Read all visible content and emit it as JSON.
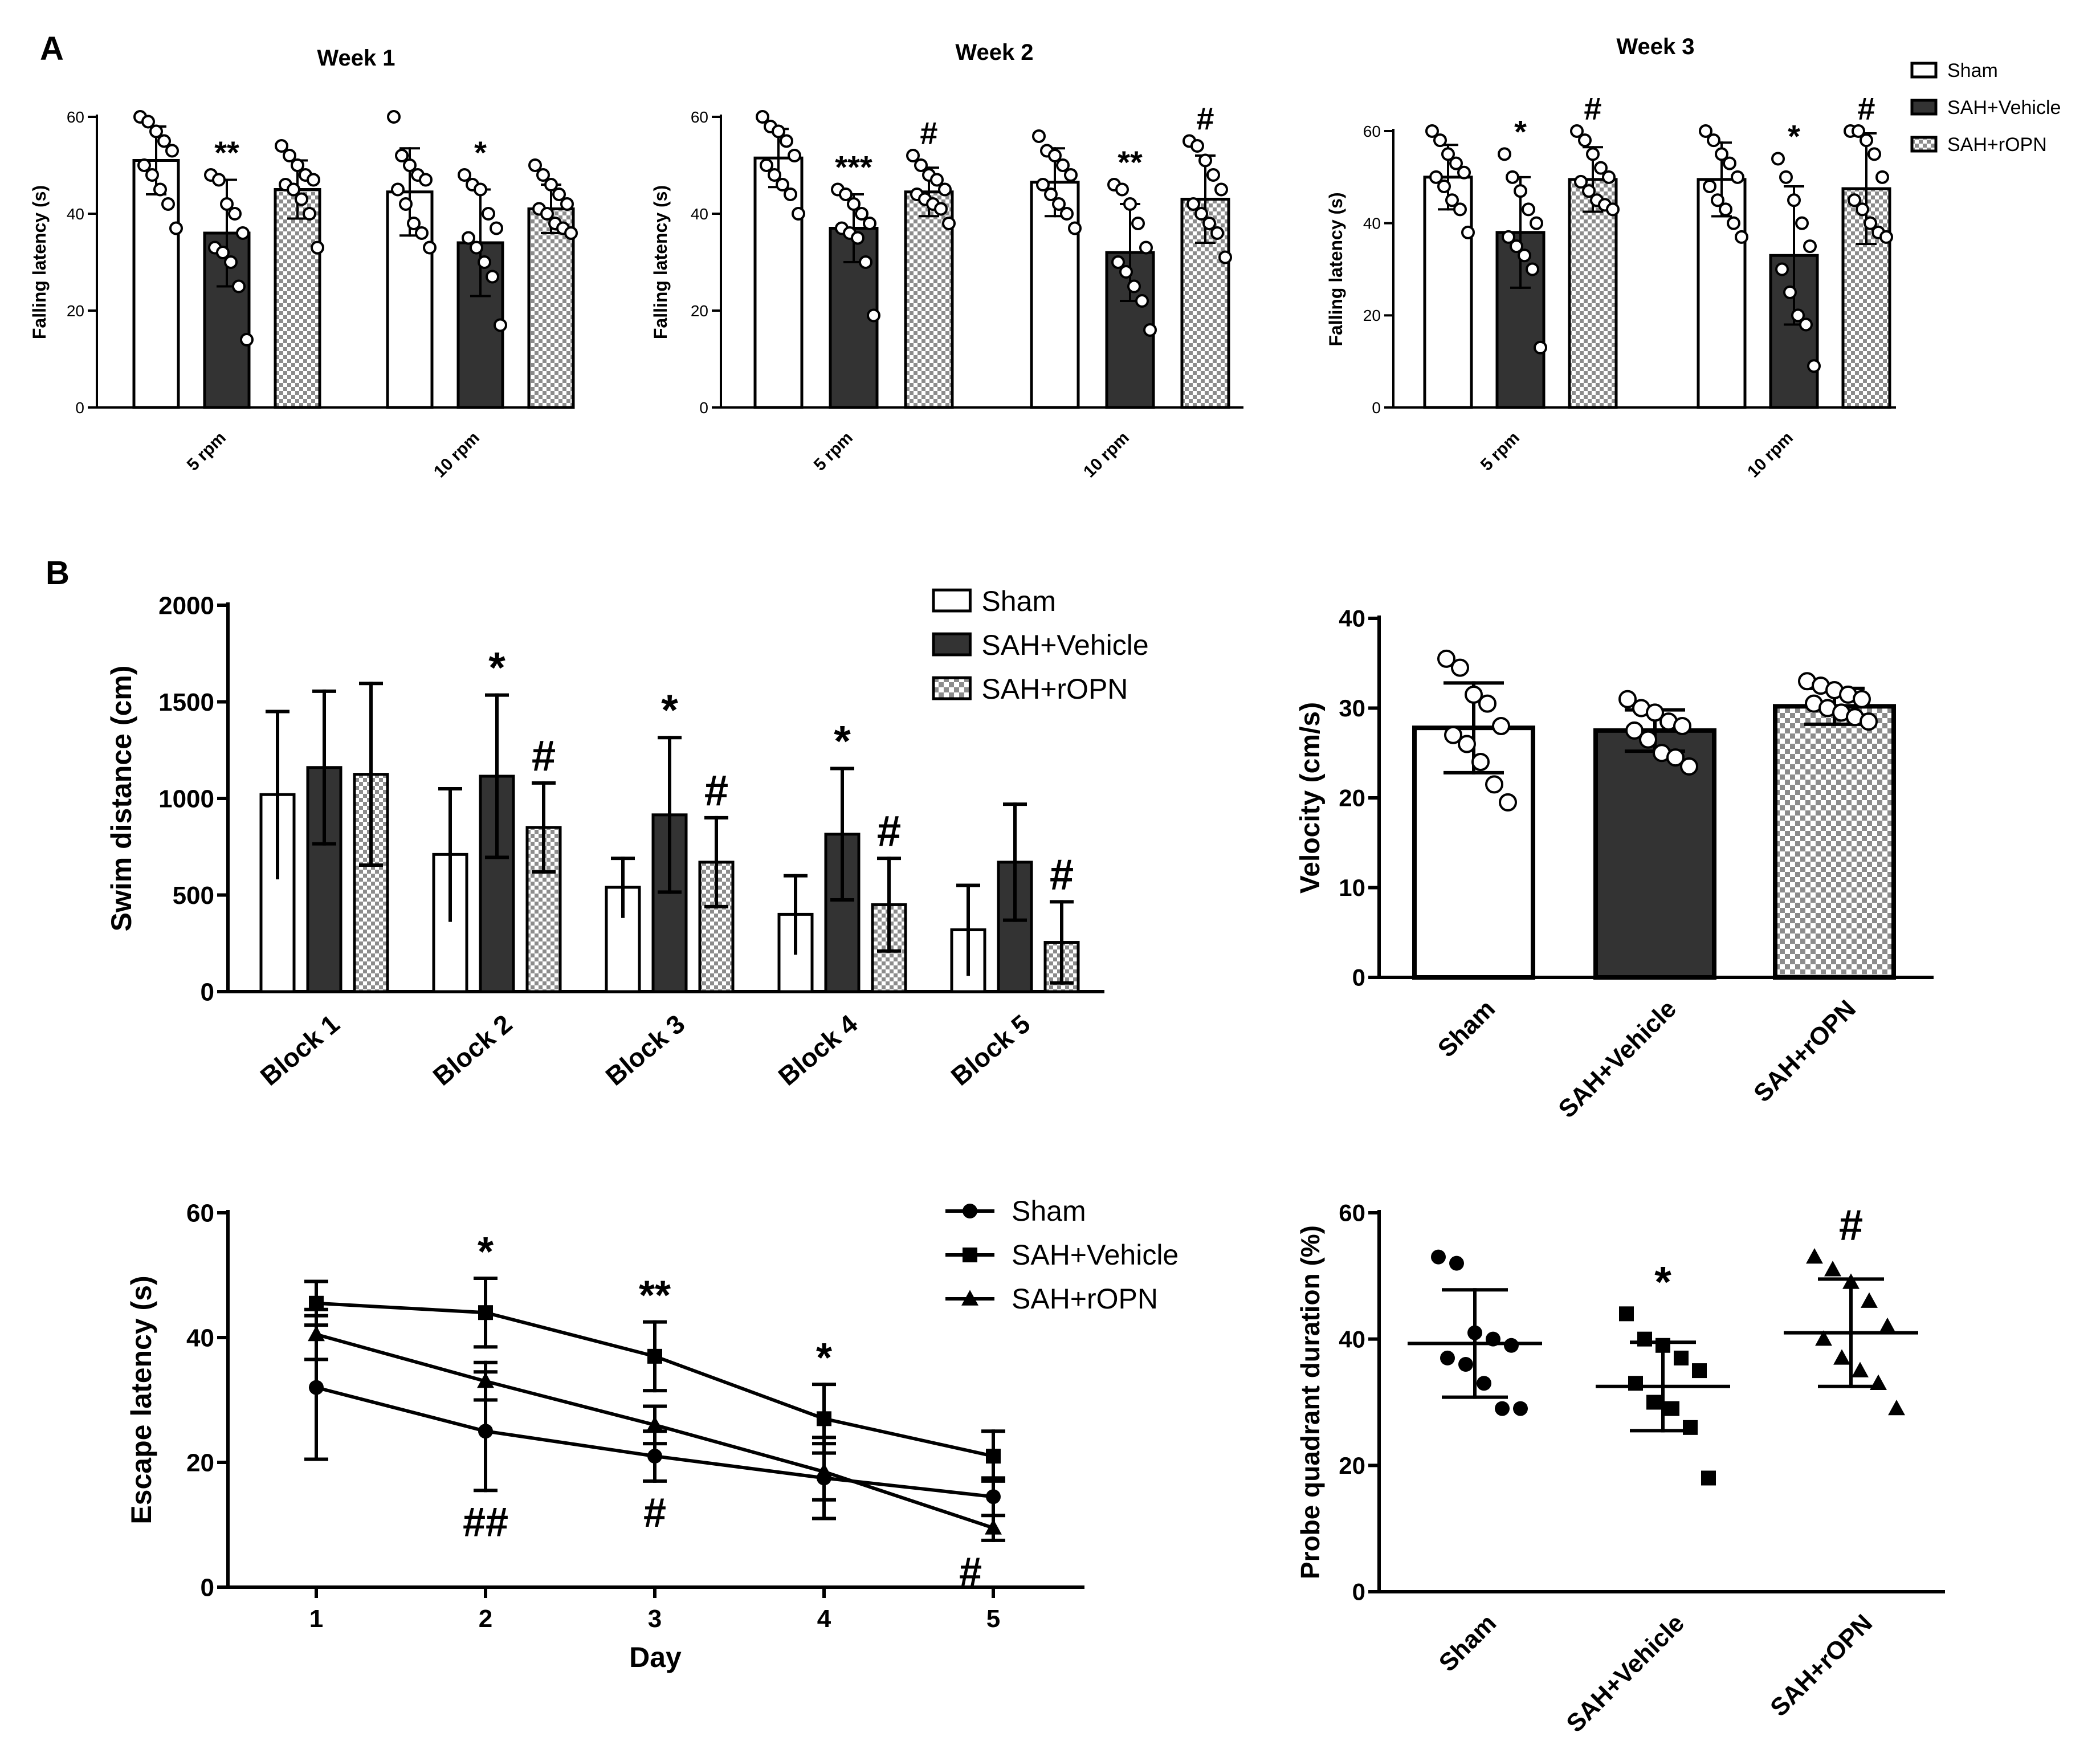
{
  "figure": {
    "panel_labels": [
      "A",
      "B"
    ]
  },
  "colors": {
    "axis": "#000000",
    "sham_fill": "#ffffff",
    "vehicle_fill": "#333333",
    "checker_light": "#ffffff",
    "checker_dark": "#8c8c8c"
  },
  "chart_data": [
    {
      "id": "rotarod_week1",
      "type": "bar",
      "title": "Week 1",
      "ylabel": "Falling latency (s)",
      "ylim": [
        0,
        60
      ],
      "yticks": [
        0,
        20,
        40,
        60
      ],
      "categories": [
        "5 rpm",
        "10 rpm"
      ],
      "series": [
        {
          "name": "Sham",
          "values": [
            51,
            44.5
          ],
          "err": [
            7,
            9
          ],
          "points": [
            [
              60,
              59,
              57,
              55,
              53,
              50,
              48,
              45,
              42,
              37
            ],
            [
              60,
              52,
              50,
              48,
              47,
              45,
              42,
              38,
              36,
              33
            ]
          ]
        },
        {
          "name": "SAH+Vehicle",
          "values": [
            36,
            34
          ],
          "err": [
            11,
            11
          ],
          "points": [
            [
              48,
              47,
              42,
              40,
              36,
              33,
              32,
              30,
              25,
              14
            ],
            [
              48,
              46,
              45,
              40,
              37,
              35,
              33,
              30,
              27,
              17
            ]
          ]
        },
        {
          "name": "SAH+rOPN",
          "values": [
            45,
            41
          ],
          "err": [
            6,
            5
          ],
          "points": [
            [
              54,
              52,
              50,
              48,
              47,
              46,
              45,
              43,
              40,
              33
            ],
            [
              50,
              48,
              46,
              44,
              42,
              41,
              40,
              38,
              37,
              36
            ]
          ]
        }
      ],
      "annotations": [
        {
          "category": "5 rpm",
          "series": "SAH+Vehicle",
          "text": "**"
        },
        {
          "category": "10 rpm",
          "series": "SAH+Vehicle",
          "text": "*"
        }
      ]
    },
    {
      "id": "rotarod_week2",
      "type": "bar",
      "title": "Week 2",
      "ylabel": "Falling latency (s)",
      "ylim": [
        0,
        60
      ],
      "yticks": [
        0,
        20,
        40,
        60
      ],
      "categories": [
        "5 rpm",
        "10 rpm"
      ],
      "series": [
        {
          "name": "Sham",
          "values": [
            51.5,
            46.5
          ],
          "err": [
            6,
            7
          ],
          "points": [
            [
              60,
              58,
              57,
              55,
              52,
              50,
              48,
              46,
              44,
              40
            ],
            [
              56,
              53,
              52,
              50,
              48,
              46,
              44,
              42,
              40,
              37
            ]
          ]
        },
        {
          "name": "SAH+Vehicle",
          "values": [
            37,
            32
          ],
          "err": [
            7,
            10
          ],
          "points": [
            [
              45,
              44,
              42,
              40,
              38,
              37,
              36,
              35,
              30,
              19
            ],
            [
              46,
              45,
              42,
              38,
              33,
              30,
              28,
              25,
              22,
              16
            ]
          ]
        },
        {
          "name": "SAH+rOPN",
          "values": [
            44.5,
            43
          ],
          "err": [
            5,
            9
          ],
          "points": [
            [
              52,
              50,
              48,
              47,
              45,
              44,
              43,
              42,
              41,
              38
            ],
            [
              55,
              54,
              51,
              48,
              45,
              42,
              40,
              38,
              36,
              31
            ]
          ]
        }
      ],
      "annotations": [
        {
          "category": "5 rpm",
          "series": "SAH+Vehicle",
          "text": "***"
        },
        {
          "category": "5 rpm",
          "series": "SAH+rOPN",
          "text": "#"
        },
        {
          "category": "10 rpm",
          "series": "SAH+Vehicle",
          "text": "**"
        },
        {
          "category": "10 rpm",
          "series": "SAH+rOPN",
          "text": "#"
        }
      ]
    },
    {
      "id": "rotarod_week3",
      "type": "bar",
      "title": "Week 3",
      "ylabel": "Falling latency (s)",
      "ylim": [
        0,
        60
      ],
      "yticks": [
        0,
        20,
        40,
        60
      ],
      "categories": [
        "5 rpm",
        "10 rpm"
      ],
      "series": [
        {
          "name": "Sham",
          "values": [
            50,
            49.5
          ],
          "err": [
            7,
            8
          ],
          "points": [
            [
              60,
              58,
              55,
              53,
              51,
              50,
              48,
              45,
              43,
              38
            ],
            [
              60,
              58,
              55,
              53,
              50,
              48,
              45,
              43,
              40,
              37
            ]
          ]
        },
        {
          "name": "SAH+Vehicle",
          "values": [
            38,
            33
          ],
          "err": [
            12,
            15
          ],
          "points": [
            [
              55,
              50,
              47,
              43,
              40,
              37,
              35,
              33,
              30,
              13
            ],
            [
              54,
              50,
              45,
              40,
              35,
              30,
              25,
              20,
              18,
              9
            ]
          ]
        },
        {
          "name": "SAH+rOPN",
          "values": [
            49.5,
            47.5
          ],
          "err": [
            7,
            12
          ],
          "points": [
            [
              60,
              58,
              55,
              52,
              50,
              49,
              47,
              45,
              44,
              43
            ],
            [
              60,
              60,
              58,
              55,
              50,
              45,
              43,
              40,
              38,
              37
            ]
          ]
        }
      ],
      "annotations": [
        {
          "category": "5 rpm",
          "series": "SAH+Vehicle",
          "text": "*"
        },
        {
          "category": "5 rpm",
          "series": "SAH+rOPN",
          "text": "#"
        },
        {
          "category": "10 rpm",
          "series": "SAH+Vehicle",
          "text": "*"
        },
        {
          "category": "10 rpm",
          "series": "SAH+rOPN",
          "text": "#"
        }
      ],
      "legend": {
        "entries": [
          "Sham",
          "SAH+Vehicle",
          "SAH+rOPN"
        ],
        "position": "top-right"
      }
    },
    {
      "id": "swim_distance",
      "type": "bar",
      "title": "",
      "ylabel": "Swim distance (cm)",
      "ylim": [
        0,
        2000
      ],
      "yticks": [
        0,
        500,
        1000,
        1500,
        2000
      ],
      "categories": [
        "Block 1",
        "Block 2",
        "Block 3",
        "Block 4",
        "Block 5"
      ],
      "series": [
        {
          "name": "Sham",
          "values": [
            1020,
            710,
            540,
            400,
            320
          ],
          "err": [
            430,
            340,
            150,
            200,
            230
          ]
        },
        {
          "name": "SAH+Vehicle",
          "values": [
            1160,
            1115,
            915,
            815,
            670
          ],
          "err": [
            395,
            420,
            400,
            340,
            300
          ]
        },
        {
          "name": "SAH+rOPN",
          "values": [
            1125,
            850,
            670,
            450,
            255
          ],
          "err": [
            470,
            230,
            230,
            240,
            210
          ]
        }
      ],
      "annotations": [
        {
          "category": "Block 2",
          "series": "SAH+Vehicle",
          "text": "*"
        },
        {
          "category": "Block 2",
          "series": "SAH+rOPN",
          "text": "#"
        },
        {
          "category": "Block 3",
          "series": "SAH+Vehicle",
          "text": "*"
        },
        {
          "category": "Block 3",
          "series": "SAH+rOPN",
          "text": "#"
        },
        {
          "category": "Block 4",
          "series": "SAH+Vehicle",
          "text": "*"
        },
        {
          "category": "Block 4",
          "series": "SAH+rOPN",
          "text": "#"
        },
        {
          "category": "Block 5",
          "series": "SAH+rOPN",
          "text": "#"
        }
      ],
      "legend": {
        "entries": [
          "Sham",
          "SAH+Vehicle",
          "SAH+rOPN"
        ],
        "position": "top-right"
      }
    },
    {
      "id": "velocity",
      "type": "bar",
      "title": "",
      "ylabel": "Velocity (cm/s)",
      "ylim": [
        0,
        40
      ],
      "yticks": [
        0,
        10,
        20,
        30,
        40
      ],
      "categories": [
        "Sham",
        "SAH+Vehicle",
        "SAH+rOPN"
      ],
      "values": [
        27.8,
        27.5,
        30.2
      ],
      "err": [
        5,
        2.3,
        2
      ],
      "points": [
        [
          35.5,
          34.5,
          31.5,
          30.5,
          28,
          27,
          26,
          24,
          21.5,
          19.5
        ],
        [
          31,
          30,
          29.5,
          28.5,
          28,
          27.5,
          26.5,
          25,
          24.5,
          23.5
        ],
        [
          33,
          32.5,
          32,
          31.5,
          31,
          30.5,
          30,
          29.5,
          29,
          28.5
        ]
      ]
    },
    {
      "id": "escape_latency",
      "type": "line",
      "title": "",
      "xlabel": "Day",
      "ylabel": "Escape latency (s)",
      "x": [
        1,
        2,
        3,
        4,
        5
      ],
      "ylim": [
        0,
        60
      ],
      "yticks": [
        0,
        20,
        40,
        60
      ],
      "series": [
        {
          "name": "Sham",
          "marker": "circle",
          "values": [
            32,
            25,
            21,
            17.5,
            14.5
          ],
          "err": [
            11.5,
            9.5,
            4,
            6.5,
            3
          ]
        },
        {
          "name": "SAH+Vehicle",
          "marker": "square",
          "values": [
            45.5,
            44,
            37,
            27,
            21
          ],
          "err": [
            3.5,
            5.5,
            5.5,
            5.5,
            4
          ]
        },
        {
          "name": "SAH+rOPN",
          "marker": "triangle",
          "values": [
            40.5,
            33,
            26,
            18.5,
            9.5
          ],
          "err": [
            4,
            3,
            3,
            4.5,
            2
          ]
        }
      ],
      "annotations": [
        {
          "x": 2,
          "text": "*",
          "placement": "above"
        },
        {
          "x": 3,
          "text": "**",
          "placement": "above"
        },
        {
          "x": 4,
          "text": "*",
          "placement": "above"
        },
        {
          "x": 2,
          "text": "##",
          "placement": "below"
        },
        {
          "x": 3,
          "text": "#",
          "placement": "below"
        },
        {
          "x": 5,
          "text": "#",
          "placement": "below"
        }
      ],
      "legend": {
        "entries": [
          "Sham",
          "SAH+Vehicle",
          "SAH+rOPN"
        ],
        "position": "top-right"
      }
    },
    {
      "id": "probe_quadrant",
      "type": "scatter",
      "title": "",
      "ylabel": "Probe quadrant duration (%)",
      "ylim": [
        0,
        60
      ],
      "yticks": [
        0,
        20,
        40,
        60
      ],
      "categories": [
        "Sham",
        "SAH+Vehicle",
        "SAH+rOPN"
      ],
      "markers": [
        "circle",
        "square",
        "triangle"
      ],
      "mean": [
        39.3,
        32.5,
        41
      ],
      "err": [
        8.5,
        7,
        8.5
      ],
      "points": [
        [
          53,
          52,
          41,
          40,
          39,
          37,
          36,
          33,
          29,
          29
        ],
        [
          44,
          40,
          39,
          37,
          35,
          33,
          30,
          29,
          26,
          18
        ],
        [
          53,
          51,
          49,
          46,
          42,
          40,
          37,
          35,
          33,
          29
        ]
      ],
      "annotations": [
        {
          "category": "SAH+Vehicle",
          "text": "*"
        },
        {
          "category": "SAH+rOPN",
          "text": "#"
        }
      ]
    }
  ]
}
